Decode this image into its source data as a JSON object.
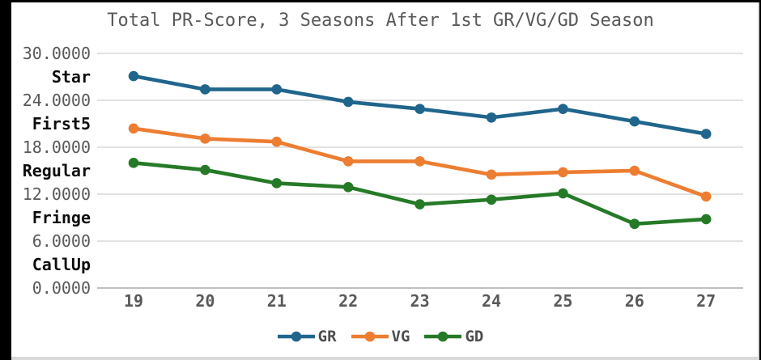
{
  "title": "Total PR-Score, 3 Seasons After 1st GR/VG/GD Season",
  "chart_data": {
    "type": "line",
    "title": "Total PR-Score, 3 Seasons After 1st GR/VG/GD Season",
    "xlabel": "",
    "ylabel": "",
    "x": [
      19,
      20,
      21,
      22,
      23,
      24,
      25,
      26,
      27
    ],
    "ylim": [
      0,
      30
    ],
    "grid": true,
    "gridline_values": [
      0,
      6,
      12,
      18,
      24,
      30
    ],
    "y_ticks": [
      {
        "value": 30,
        "label": "30.0000",
        "style": "number"
      },
      {
        "value": 27,
        "label": "Star",
        "style": "category"
      },
      {
        "value": 24,
        "label": "24.0000",
        "style": "number"
      },
      {
        "value": 21,
        "label": "First5",
        "style": "category"
      },
      {
        "value": 18,
        "label": "18.0000",
        "style": "number"
      },
      {
        "value": 15,
        "label": "Regular",
        "style": "category"
      },
      {
        "value": 12,
        "label": "12.0000",
        "style": "number"
      },
      {
        "value": 9,
        "label": "Fringe",
        "style": "category"
      },
      {
        "value": 6,
        "label": "6.0000",
        "style": "number"
      },
      {
        "value": 3,
        "label": "CallUp",
        "style": "category"
      },
      {
        "value": 0,
        "label": "0.0000",
        "style": "number"
      }
    ],
    "series": [
      {
        "name": "GR",
        "color": "#20658C",
        "values": [
          27.1,
          25.4,
          25.4,
          23.8,
          22.9,
          21.8,
          22.9,
          21.3,
          19.7
        ]
      },
      {
        "name": "VG",
        "color": "#ED7D31",
        "values": [
          20.4,
          19.1,
          18.7,
          16.2,
          16.2,
          14.5,
          14.8,
          15.0,
          11.7
        ]
      },
      {
        "name": "GD",
        "color": "#267A27",
        "values": [
          16.0,
          15.1,
          13.4,
          12.9,
          10.7,
          11.3,
          12.1,
          8.2,
          8.8
        ]
      }
    ],
    "legend_position": "bottom",
    "legend": [
      "GR",
      "VG",
      "GD"
    ]
  },
  "colors": {
    "page_bg": "#000000",
    "chart_bg": "#ffffff",
    "title_text": "#595959",
    "axis_number_text": "#595959",
    "axis_category_text": "#0d0d0d",
    "x_axis_text": "#595959",
    "gridline": "#d9d9d9",
    "axis_line": "#bfbfbf",
    "border": "#d9d9d9",
    "legend_text": "#4d4d4d"
  }
}
